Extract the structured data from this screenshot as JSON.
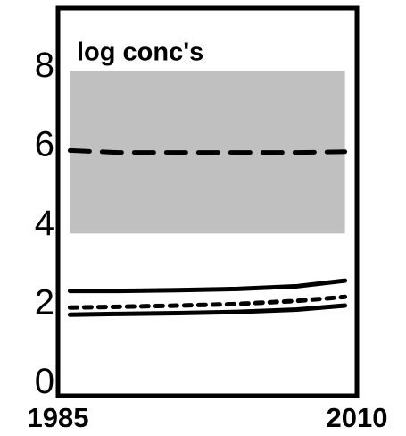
{
  "chart_data": {
    "type": "line",
    "title": "log conc's",
    "x": [
      1986,
      1990,
      1995,
      2000,
      2005,
      2009
    ],
    "xlim": [
      1985,
      2010
    ],
    "xticks": [
      1985,
      2010
    ],
    "ylim": [
      -0.35,
      9.45
    ],
    "yticks": [
      0,
      2,
      4,
      6,
      8
    ],
    "band": {
      "color": "#c0c0c0",
      "lower": [
        3.75,
        3.75,
        3.75,
        3.75,
        3.75,
        3.75
      ],
      "upper": [
        7.85,
        7.85,
        7.85,
        7.85,
        7.85,
        7.85
      ]
    },
    "series": [
      {
        "color": "#000000",
        "dash": "dashed",
        "values": [
          5.85,
          5.8,
          5.8,
          5.8,
          5.8,
          5.82
        ]
      },
      {
        "color": "#000000",
        "dash": "solid",
        "values": [
          2.3,
          2.3,
          2.32,
          2.35,
          2.42,
          2.56
        ]
      },
      {
        "color": "#000000",
        "dash": "dotted",
        "values": [
          1.88,
          1.9,
          1.93,
          1.97,
          2.05,
          2.15
        ]
      },
      {
        "color": "#000000",
        "dash": "solid",
        "values": [
          1.7,
          1.72,
          1.74,
          1.77,
          1.83,
          1.93
        ]
      }
    ]
  }
}
